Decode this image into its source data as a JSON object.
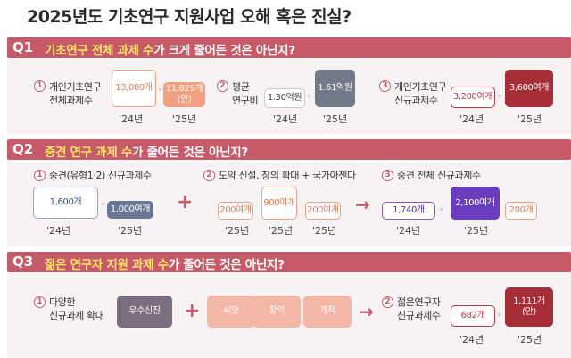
{
  "title": "2025년도 기초연구 지원사업 오해 혹은 진실?",
  "q1": {
    "num": "Q1",
    "text_hl": "기초연구 전체 과제 수",
    "text_rest": "가 크게 줄어든 것은 아닌지?",
    "items": [
      {
        "num": "1",
        "label_line1": "개인기초연구",
        "label_line2": "전체과제수",
        "v24": "13,080개",
        "v25_line1": "11,829개",
        "v25_line2": "(안)",
        "y24": "'24년",
        "y25": "'25년"
      },
      {
        "num": "2",
        "label_line1": "평균",
        "label_line2": "연구비",
        "v24": "1.30억원",
        "v25": "1.61억원",
        "y24": "'24년",
        "y25": "'25년"
      },
      {
        "num": "3",
        "label_line1": "개인기초연구",
        "label_line2": "신규과제수",
        "v24": "3,200여개",
        "v25": "3,600여개",
        "y24": "'24년",
        "y25": "'25년"
      }
    ]
  },
  "q2": {
    "num": "Q2",
    "text_hl": "중견 연구 과제 수",
    "text_rest": "가 줄어든 것은 아닌지?",
    "item1": {
      "num": "1",
      "label": "중견(유형1·2) 신규과제수",
      "v24": "1,600개",
      "v25": "1,000여개",
      "y24": "'24년",
      "y25": "'25년"
    },
    "item2": {
      "num": "2",
      "label": "도약 신설, 창의 확대 + 국가아젠다",
      "a": "200여개",
      "b": "900여개",
      "c": "200여개",
      "ya": "'25년",
      "yb": "'25년",
      "yc": "'25년"
    },
    "item3": {
      "num": "3",
      "label": "중견 전체 신규과제수",
      "v24": "1,740개",
      "v25": "2,100여개",
      "extra": "200개",
      "y24": "'24년",
      "y25": "'25년"
    }
  },
  "q3": {
    "num": "Q3",
    "text_hl": "젊은 연구자 지원 과제 수",
    "text_rest": "가 줄어든 것은 아닌지?",
    "item1": {
      "num": "1",
      "label_line1": "다양한",
      "label_line2": "신규과제 확대",
      "b1": "우수신진",
      "b2": "씨앗",
      "b3": "창의",
      "b4": "개척"
    },
    "item2": {
      "num": "2",
      "label_line1": "젊은연구자",
      "label_line2": "신규과제수",
      "v24": "682개",
      "v25_line1": "1,111개",
      "v25_line2": "(안)",
      "y24": "'24년",
      "y25": "'25년"
    }
  },
  "colors": {
    "accent": "#c65a68",
    "highlight": "#ffe36b",
    "panel": "#f7f2f3"
  }
}
